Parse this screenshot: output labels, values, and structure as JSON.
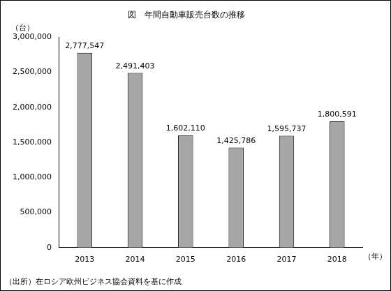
{
  "chart_data": {
    "type": "bar",
    "title": "図　年間自動車販売台数の推移",
    "y_label": "（台）",
    "x_label": "（年）",
    "source": "（出所）在ロシア欧州ビジネス協会資料を基に作成",
    "categories": [
      "2013",
      "2014",
      "2015",
      "2016",
      "2017",
      "2018"
    ],
    "values": [
      2777547,
      2491403,
      1602110,
      1425786,
      1595737,
      1800591
    ],
    "value_labels": [
      "2,777,547",
      "2,491,403",
      "1,602,110",
      "1,425,786",
      "1,595,737",
      "1,800,591"
    ],
    "color": "#a6a6a6",
    "ylim": [
      0,
      3000000
    ],
    "yticks": [
      0,
      {
        "value": 500000,
        "label": "500,000"
      },
      {
        "value": 1000000,
        "label": "1,000,000"
      },
      {
        "value": 1500000,
        "label": "1,500,000"
      },
      {
        "value": 2000000,
        "label": "2,000,000"
      },
      {
        "value": 2500000,
        "label": "2,500,000"
      },
      {
        "value": 3000000,
        "label": "3,000,000"
      }
    ],
    "grid": false,
    "data_labels": true
  }
}
